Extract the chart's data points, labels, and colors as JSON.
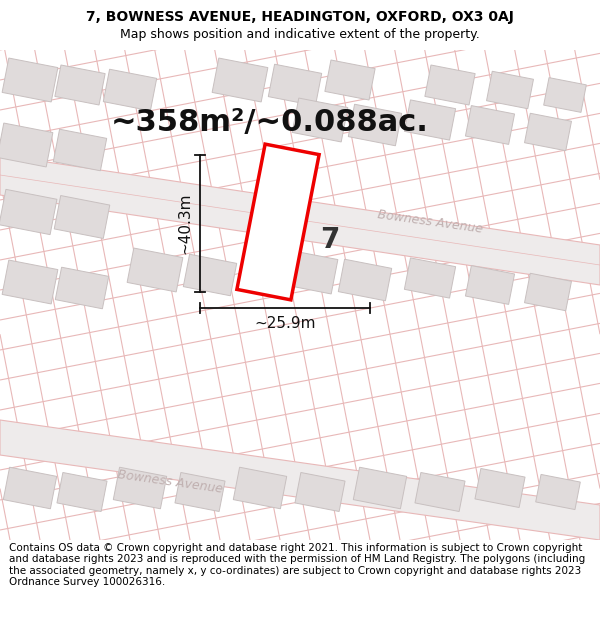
{
  "title_line1": "7, BOWNESS AVENUE, HEADINGTON, OXFORD, OX3 0AJ",
  "title_line2": "Map shows position and indicative extent of the property.",
  "area_text": "~358m²/~0.088ac.",
  "dim_width": "~25.9m",
  "dim_height": "~40.3m",
  "number_label": "7",
  "footer_text": "Contains OS data © Crown copyright and database right 2021. This information is subject to Crown copyright and database rights 2023 and is reproduced with the permission of HM Land Registry. The polygons (including the associated geometry, namely x, y co-ordinates) are subject to Crown copyright and database rights 2023 Ordnance Survey 100026316.",
  "bg_color": "#ffffff",
  "map_bg": "#faf8f8",
  "road_fill": "#eeebeb",
  "road_line": "#e8b8b8",
  "building_fill": "#e0dbdb",
  "building_edge": "#c8c0c0",
  "highlight_color": "#ee0000",
  "road_label_color": "#c0b0b0",
  "dim_line_color": "#111111",
  "title_fontsize": 10,
  "subtitle_fontsize": 9,
  "footer_fontsize": 7.5,
  "area_fontsize": 22,
  "dim_fontsize": 11,
  "number_fontsize": 20,
  "road_label_fontsize": 9,
  "map_tilt_deg": -11
}
